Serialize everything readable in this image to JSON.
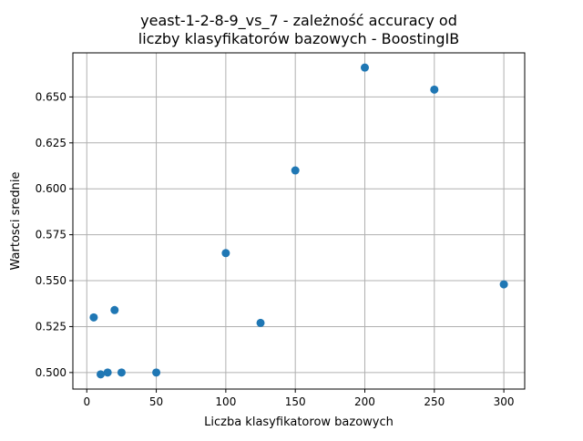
{
  "chart_data": {
    "type": "scatter",
    "title_line1": "yeast-1-2-8-9_vs_7 - zależność accuracy od",
    "title_line2": "liczby klasyfikatorów bazowych - BoostingIB",
    "xlabel": "Liczba klasyfikatorow bazowych",
    "ylabel": "Wartosci srednie",
    "xlim": [
      -10,
      315
    ],
    "ylim": [
      0.491,
      0.674
    ],
    "x_ticks": [
      0,
      50,
      100,
      150,
      200,
      250,
      300
    ],
    "x_tick_labels": [
      "0",
      "50",
      "100",
      "150",
      "200",
      "250",
      "300"
    ],
    "y_ticks": [
      0.5,
      0.525,
      0.55,
      0.575,
      0.6,
      0.625,
      0.65
    ],
    "y_tick_labels": [
      "0.500",
      "0.525",
      "0.550",
      "0.575",
      "0.600",
      "0.625",
      "0.650"
    ],
    "grid": true,
    "marker_color": "#1f77b4",
    "points": [
      {
        "x": 5,
        "y": 0.53
      },
      {
        "x": 10,
        "y": 0.499
      },
      {
        "x": 15,
        "y": 0.5
      },
      {
        "x": 20,
        "y": 0.534
      },
      {
        "x": 25,
        "y": 0.5
      },
      {
        "x": 50,
        "y": 0.5
      },
      {
        "x": 100,
        "y": 0.565
      },
      {
        "x": 125,
        "y": 0.527
      },
      {
        "x": 150,
        "y": 0.61
      },
      {
        "x": 200,
        "y": 0.666
      },
      {
        "x": 250,
        "y": 0.654
      },
      {
        "x": 300,
        "y": 0.548
      }
    ]
  }
}
